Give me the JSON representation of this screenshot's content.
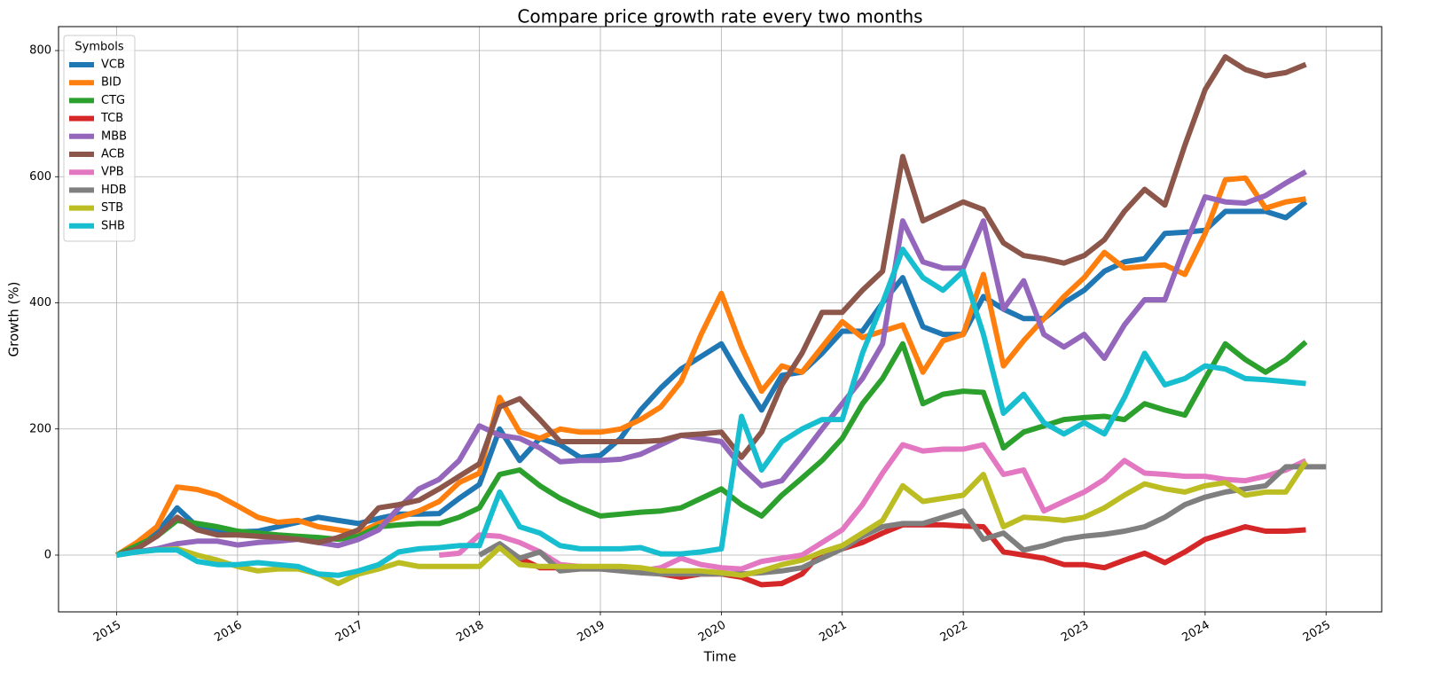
{
  "chart_data": {
    "type": "line",
    "title": "Compare price growth rate every two months",
    "xlabel": "Time",
    "ylabel": "Growth (%)",
    "legend_title": "Symbols",
    "legend": "upper left",
    "grid": true,
    "xlim": [
      2014.52,
      2025.46
    ],
    "xticks": [
      2015,
      2016,
      2017,
      2018,
      2019,
      2020,
      2021,
      2022,
      2023,
      2024,
      2025
    ],
    "ylim": [
      -90,
      838
    ],
    "yticks": [
      0,
      200,
      400,
      600,
      800
    ],
    "x": [
      2015,
      2015.167,
      2015.333,
      2015.5,
      2015.667,
      2015.833,
      2016,
      2016.167,
      2016.333,
      2016.5,
      2016.667,
      2016.833,
      2017,
      2017.167,
      2017.333,
      2017.5,
      2017.667,
      2017.833,
      2018,
      2018.167,
      2018.333,
      2018.5,
      2018.667,
      2018.833,
      2019,
      2019.167,
      2019.333,
      2019.5,
      2019.667,
      2019.833,
      2020,
      2020.167,
      2020.333,
      2020.5,
      2020.667,
      2020.833,
      2021,
      2021.167,
      2021.333,
      2021.5,
      2021.667,
      2021.833,
      2022,
      2022.167,
      2022.333,
      2022.5,
      2022.667,
      2022.833,
      2023,
      2023.167,
      2023.333,
      2023.5,
      2023.667,
      2023.833,
      2024,
      2024.167,
      2024.333,
      2024.5,
      2024.667,
      2024.833,
      2025
    ],
    "series": [
      {
        "name": "VCB",
        "color": "#1f77b4",
        "values": [
          0,
          15,
          35,
          75,
          45,
          38,
          37,
          38,
          45,
          52,
          60,
          55,
          50,
          58,
          65,
          65,
          66,
          90,
          112,
          200,
          150,
          185,
          175,
          155,
          158,
          185,
          230,
          265,
          295,
          315,
          335,
          280,
          230,
          285,
          290,
          320,
          355,
          355,
          400,
          440,
          362,
          350,
          350,
          410,
          390,
          375,
          375,
          400,
          420,
          450,
          465,
          470,
          510,
          512,
          515,
          545,
          545,
          545,
          535,
          560,
          null
        ]
      },
      {
        "name": "BID",
        "color": "#ff7f0e",
        "values": [
          0,
          20,
          45,
          108,
          104,
          95,
          78,
          60,
          52,
          55,
          45,
          40,
          35,
          50,
          60,
          70,
          85,
          115,
          130,
          250,
          195,
          185,
          200,
          195,
          195,
          200,
          215,
          235,
          275,
          350,
          415,
          330,
          260,
          300,
          290,
          330,
          370,
          345,
          355,
          365,
          290,
          340,
          350,
          445,
          300,
          340,
          375,
          410,
          440,
          480,
          455,
          458,
          460,
          445,
          510,
          595,
          598,
          550,
          560,
          565,
          null
        ]
      },
      {
        "name": "CTG",
        "color": "#2ca02c",
        "values": [
          0,
          15,
          30,
          55,
          50,
          45,
          38,
          35,
          32,
          30,
          28,
          25,
          30,
          45,
          48,
          50,
          50,
          60,
          75,
          128,
          135,
          110,
          90,
          75,
          62,
          65,
          68,
          70,
          75,
          90,
          105,
          80,
          62,
          95,
          122,
          150,
          185,
          240,
          280,
          335,
          240,
          255,
          260,
          258,
          170,
          195,
          205,
          215,
          218,
          220,
          215,
          240,
          230,
          222,
          280,
          335,
          310,
          290,
          310,
          338,
          null
        ]
      },
      {
        "name": "TCB",
        "color": "#d62728",
        "values": [
          null,
          null,
          null,
          null,
          null,
          null,
          null,
          null,
          null,
          null,
          null,
          null,
          null,
          null,
          null,
          null,
          null,
          null,
          null,
          null,
          -5,
          -20,
          -20,
          -20,
          -20,
          -22,
          -25,
          -30,
          -35,
          -30,
          -30,
          -35,
          -47,
          -45,
          -30,
          5,
          10,
          20,
          35,
          48,
          48,
          48,
          46,
          45,
          5,
          0,
          -5,
          -15,
          -15,
          -20,
          -8,
          3,
          -12,
          5,
          25,
          35,
          45,
          38,
          38,
          40,
          null
        ]
      },
      {
        "name": "MBB",
        "color": "#9467bd",
        "values": [
          0,
          5,
          10,
          18,
          22,
          22,
          16,
          20,
          22,
          25,
          20,
          15,
          25,
          40,
          75,
          105,
          120,
          150,
          205,
          190,
          185,
          170,
          148,
          150,
          150,
          152,
          160,
          175,
          190,
          185,
          180,
          140,
          110,
          118,
          158,
          200,
          240,
          280,
          335,
          530,
          465,
          455,
          455,
          530,
          390,
          435,
          350,
          330,
          350,
          312,
          365,
          405,
          405,
          490,
          568,
          560,
          558,
          570,
          590,
          608,
          null
        ]
      },
      {
        "name": "ACB",
        "color": "#8c564b",
        "values": [
          0,
          10,
          30,
          60,
          40,
          32,
          32,
          30,
          28,
          25,
          20,
          28,
          40,
          75,
          80,
          87,
          105,
          125,
          145,
          235,
          248,
          215,
          180,
          180,
          180,
          180,
          180,
          182,
          190,
          192,
          195,
          155,
          195,
          270,
          320,
          385,
          385,
          420,
          450,
          632,
          530,
          545,
          560,
          548,
          495,
          475,
          470,
          463,
          475,
          500,
          545,
          580,
          555,
          650,
          738,
          790,
          770,
          760,
          765,
          778,
          null
        ]
      },
      {
        "name": "VPB",
        "color": "#e377c2",
        "values": [
          null,
          null,
          null,
          null,
          null,
          null,
          null,
          null,
          null,
          null,
          null,
          null,
          null,
          null,
          null,
          null,
          0,
          3,
          32,
          30,
          20,
          5,
          -15,
          -18,
          -20,
          -22,
          -25,
          -20,
          -5,
          -15,
          -20,
          -22,
          -10,
          -5,
          0,
          20,
          40,
          80,
          130,
          175,
          165,
          168,
          168,
          175,
          128,
          135,
          70,
          85,
          100,
          120,
          150,
          130,
          128,
          125,
          125,
          120,
          118,
          125,
          135,
          150,
          null
        ]
      },
      {
        "name": "HDB",
        "color": "#7f7f7f",
        "values": [
          null,
          null,
          null,
          null,
          null,
          null,
          null,
          null,
          null,
          null,
          null,
          null,
          null,
          null,
          null,
          null,
          null,
          null,
          0,
          18,
          -5,
          5,
          -25,
          -22,
          -22,
          -25,
          -28,
          -30,
          -30,
          -30,
          -30,
          -30,
          -28,
          -25,
          -20,
          -5,
          10,
          30,
          45,
          50,
          50,
          60,
          70,
          25,
          35,
          8,
          15,
          25,
          30,
          33,
          38,
          45,
          60,
          80,
          92,
          100,
          105,
          110,
          140,
          140,
          140
        ]
      },
      {
        "name": "STB",
        "color": "#bcbd22",
        "values": [
          0,
          5,
          8,
          10,
          0,
          -8,
          -18,
          -25,
          -22,
          -22,
          -30,
          -45,
          -30,
          -22,
          -12,
          -18,
          -18,
          -18,
          -18,
          12,
          -15,
          -18,
          -18,
          -18,
          -18,
          -18,
          -20,
          -25,
          -25,
          -25,
          -28,
          -32,
          -25,
          -15,
          -8,
          5,
          15,
          35,
          55,
          110,
          85,
          90,
          95,
          128,
          45,
          60,
          58,
          55,
          60,
          75,
          95,
          113,
          105,
          100,
          110,
          115,
          95,
          100,
          100,
          148,
          null
        ]
      },
      {
        "name": "SHB",
        "color": "#17becf",
        "values": [
          0,
          5,
          8,
          8,
          -10,
          -15,
          -15,
          -12,
          -15,
          -18,
          -30,
          -32,
          -25,
          -15,
          5,
          10,
          12,
          15,
          15,
          100,
          45,
          35,
          15,
          10,
          10,
          10,
          12,
          2,
          2,
          5,
          10,
          220,
          135,
          180,
          200,
          215,
          215,
          320,
          400,
          485,
          440,
          420,
          450,
          350,
          225,
          255,
          210,
          192,
          210,
          192,
          250,
          320,
          270,
          280,
          300,
          295,
          280,
          278,
          275,
          272,
          null
        ]
      }
    ]
  }
}
